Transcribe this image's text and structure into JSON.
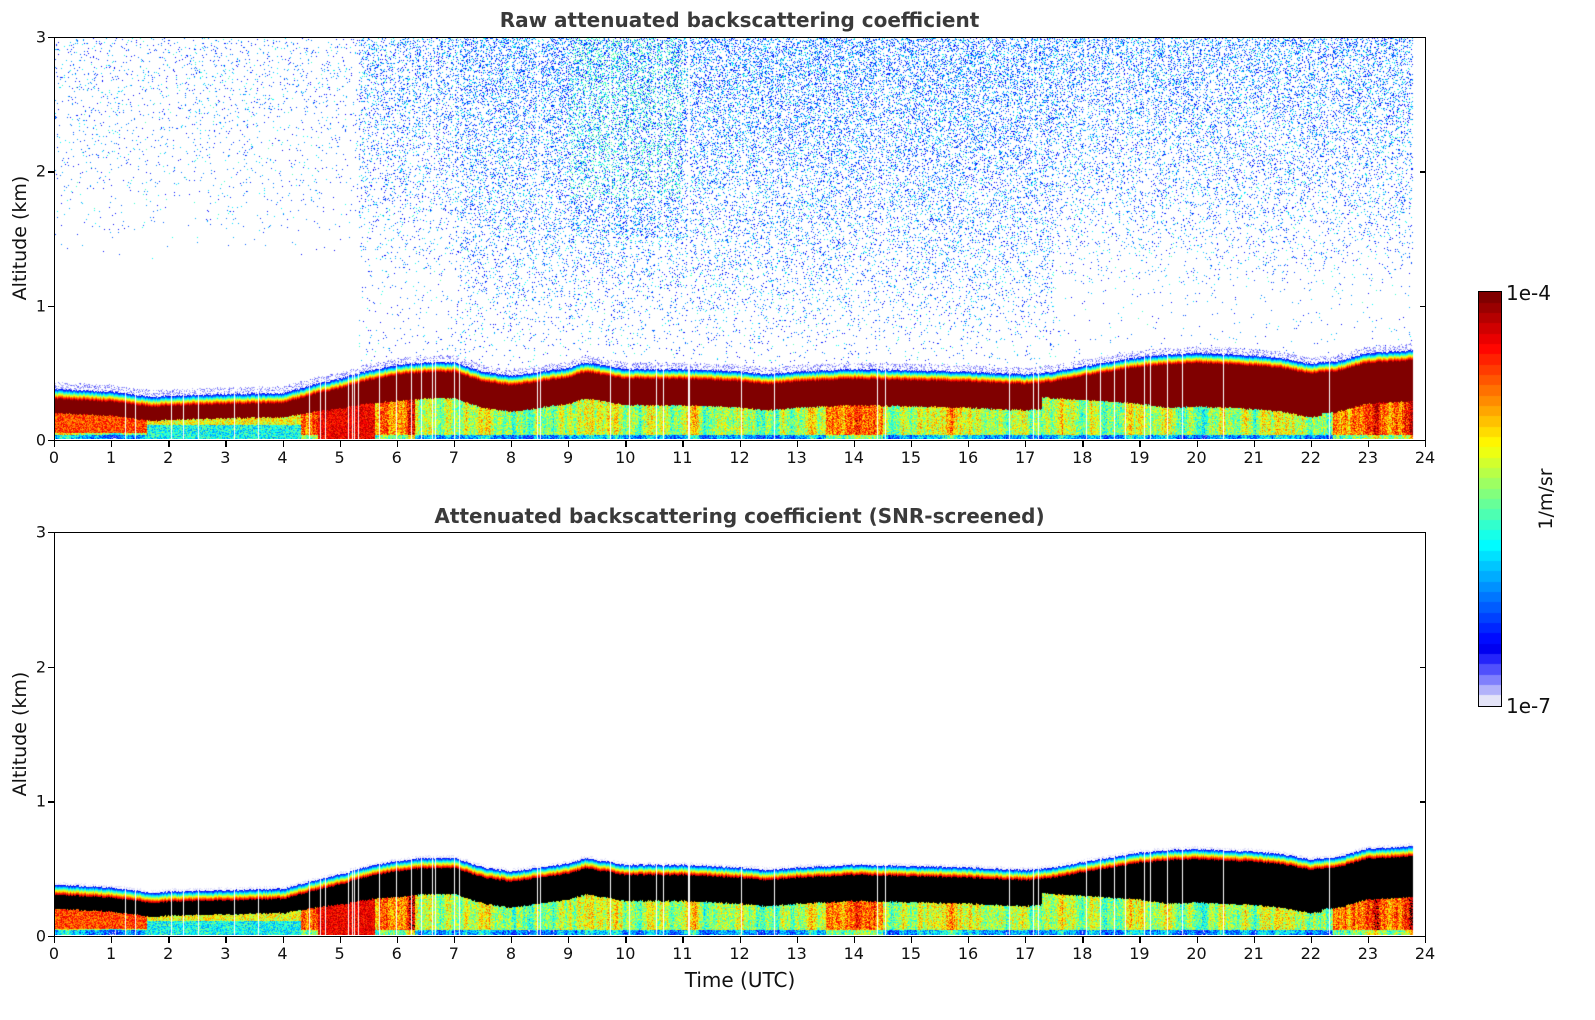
{
  "chart_data": [
    {
      "type": "heatmap",
      "title": "Raw attenuated backscattering coefficient",
      "xlabel": "",
      "ylabel": "Altitude (km)",
      "xlim": [
        0,
        24
      ],
      "ylim": [
        0,
        3
      ],
      "xticks": [
        "0",
        "1",
        "2",
        "3",
        "4",
        "5",
        "6",
        "7",
        "8",
        "9",
        "10",
        "11",
        "12",
        "13",
        "14",
        "15",
        "16",
        "17",
        "18",
        "19",
        "20",
        "21",
        "22",
        "23",
        "24"
      ],
      "yticks": [
        "0",
        "1",
        "2",
        "3"
      ],
      "data_end_hour": 23.8,
      "screened": false,
      "boundary_layer_top_km": {
        "hours": [
          0,
          1,
          1.7,
          2,
          3,
          4,
          4.5,
          5,
          5.5,
          6,
          6.5,
          7,
          7.5,
          8,
          9,
          9.3,
          10,
          11,
          12,
          12.5,
          13,
          14,
          15,
          16,
          17,
          17.5,
          18,
          19,
          19.5,
          20,
          21,
          21.5,
          22,
          22.5,
          23,
          23.8
        ],
        "values": [
          0.37,
          0.35,
          0.31,
          0.32,
          0.33,
          0.34,
          0.4,
          0.45,
          0.51,
          0.55,
          0.57,
          0.57,
          0.5,
          0.47,
          0.53,
          0.57,
          0.52,
          0.52,
          0.5,
          0.48,
          0.5,
          0.52,
          0.51,
          0.5,
          0.48,
          0.5,
          0.54,
          0.61,
          0.63,
          0.64,
          0.62,
          0.6,
          0.56,
          0.58,
          0.64,
          0.66
        ]
      },
      "note": "Noise region above boundary layer; denser scatter between 05:00 and 24:00"
    },
    {
      "type": "heatmap",
      "title": "Attenuated backscattering coefficient (SNR-screened)",
      "xlabel": "Time (UTC)",
      "ylabel": "Altitude (km)",
      "xlim": [
        0,
        24
      ],
      "ylim": [
        0,
        3
      ],
      "xticks": [
        "0",
        "1",
        "2",
        "3",
        "4",
        "5",
        "6",
        "7",
        "8",
        "9",
        "10",
        "11",
        "12",
        "13",
        "14",
        "15",
        "16",
        "17",
        "18",
        "19",
        "20",
        "21",
        "22",
        "23",
        "24"
      ],
      "yticks": [
        "0",
        "1",
        "2",
        "3"
      ],
      "data_end_hour": 23.8,
      "screened": true,
      "saturated_color": "#000000"
    }
  ],
  "colorbar": {
    "min_label": "1e-7",
    "max_label": "1e-4",
    "unit_label": "1/m/sr",
    "colormap": "jet"
  }
}
